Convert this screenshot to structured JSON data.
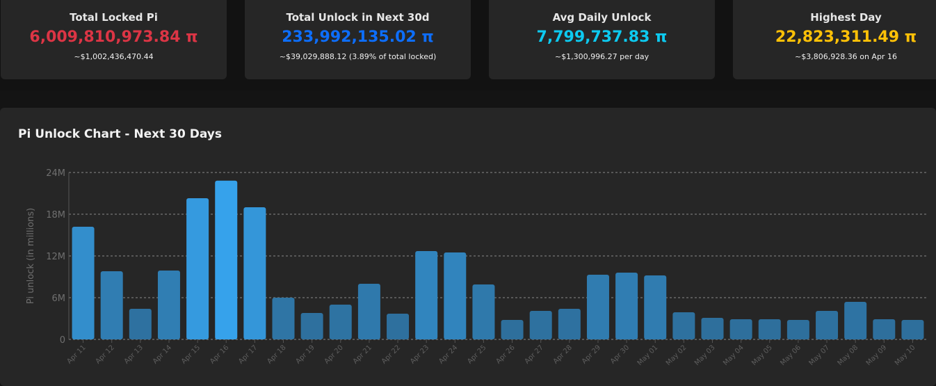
{
  "cards": [
    {
      "title": "Total Locked Pi",
      "value": "6,009,810,973.84 π",
      "sub": "~$1,002,436,470.44",
      "color": "#dc3545"
    },
    {
      "title": "Total Unlock in Next 30d",
      "value": "233,992,135.02 π",
      "sub": "~$39,029,888.12 (3.89% of total locked)",
      "color": "#0d6efd"
    },
    {
      "title": "Avg Daily Unlock",
      "value": "7,799,737.83 π",
      "sub": "~$1,300,996.27 per day",
      "color": "#0dcaf0"
    },
    {
      "title": "Highest Day",
      "value": "22,823,311.49 π",
      "sub": "~$3,806,928.36 on Apr 16",
      "color": "#ffc107"
    }
  ],
  "chart_data": {
    "type": "bar",
    "title": "Pi Unlock Chart - Next 30 Days",
    "ylabel": "Pi unlock (in millions)",
    "xlabel": "",
    "ylim": [
      0,
      24
    ],
    "yticks": [
      "0",
      "6M",
      "12M",
      "18M",
      "24M"
    ],
    "grid": true,
    "categories": [
      "Apr 11",
      "Apr 12",
      "Apr 13",
      "Apr 14",
      "Apr 15",
      "Apr 16",
      "Apr 17",
      "Apr 18",
      "Apr 19",
      "Apr 20",
      "Apr 21",
      "Apr 22",
      "Apr 23",
      "Apr 24",
      "Apr 25",
      "Apr 26",
      "Apr 27",
      "Apr 28",
      "Apr 29",
      "Apr 30",
      "May 01",
      "May 02",
      "May 03",
      "May 04",
      "May 05",
      "May 06",
      "May 07",
      "May 08",
      "May 09",
      "May 10"
    ],
    "values": [
      16.2,
      9.8,
      4.4,
      9.9,
      20.3,
      22.82,
      19.0,
      6.0,
      3.8,
      5.0,
      8.0,
      3.7,
      12.7,
      12.5,
      7.9,
      2.8,
      4.1,
      4.4,
      9.3,
      9.6,
      9.2,
      3.9,
      3.1,
      2.9,
      2.9,
      2.8,
      4.1,
      5.4,
      2.9,
      2.8
    ],
    "colors": {
      "low": "#2d6b96",
      "high": "#36a2eb"
    }
  }
}
